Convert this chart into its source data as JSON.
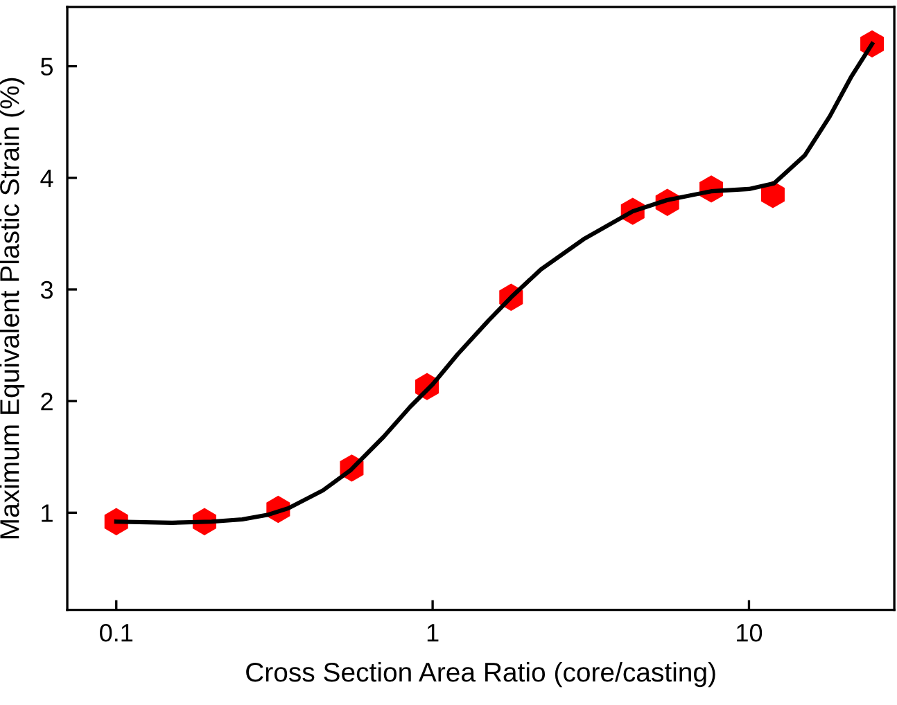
{
  "chart_data": {
    "type": "scatter",
    "xlabel": "Cross Section Area Ratio (core/casting)",
    "ylabel": "Maximum Equivalent Plastic Strain (%)",
    "log": "x",
    "xlim": [
      0.07,
      28.8
    ],
    "ylim": [
      0.13,
      5.53
    ],
    "xticks": [
      0.1,
      1,
      10
    ],
    "yticks": [
      1,
      2,
      3,
      4,
      5
    ],
    "grid": false,
    "legend": false,
    "series": [
      {
        "type": "line",
        "color": "#000000",
        "marker": "none",
        "line_style": "solid",
        "x": [
          0.1,
          0.15,
          0.2,
          0.25,
          0.3,
          0.35,
          0.45,
          0.55,
          0.7,
          0.85,
          1.0,
          1.2,
          1.5,
          1.77,
          2.2,
          3.0,
          4.29,
          5.5,
          7.6,
          10,
          12,
          15,
          18,
          21,
          24.5
        ],
        "values": [
          0.92,
          0.91,
          0.92,
          0.94,
          0.98,
          1.04,
          1.2,
          1.38,
          1.68,
          1.95,
          2.15,
          2.42,
          2.72,
          2.93,
          3.18,
          3.45,
          3.7,
          3.8,
          3.88,
          3.9,
          3.95,
          4.2,
          4.55,
          4.9,
          5.2
        ]
      },
      {
        "color": "#ff0000",
        "x": [
          0.1,
          0.19,
          0.325,
          0.555,
          0.96,
          1.77,
          4.29,
          5.52,
          7.6,
          11.9,
          24.5
        ],
        "values": [
          0.92,
          0.92,
          1.03,
          1.4,
          2.13,
          2.93,
          3.7,
          3.78,
          3.9,
          3.85,
          5.2
        ]
      }
    ]
  }
}
